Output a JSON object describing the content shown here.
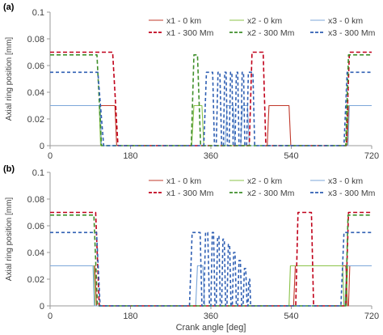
{
  "colors": {
    "x1": "#c0392b",
    "x1_300": "#c0001a",
    "x2": "#8bc34a",
    "x2_300": "#3f8f2b",
    "x3": "#7da7d9",
    "x3_300": "#2f5fb3",
    "axis": "#9a9a9a",
    "text": "#404040"
  },
  "xlabel": "Crank angle [deg]",
  "ylabel": "Axial ring position [mm]",
  "chart_data": [
    {
      "panel_label": "(a)",
      "type": "line",
      "xlim": [
        0,
        720
      ],
      "ylim": [
        0,
        0.1
      ],
      "xticks": [
        0,
        180,
        360,
        540,
        720
      ],
      "yticks": [
        0,
        0.02,
        0.04,
        0.06,
        0.08,
        0.1
      ],
      "yticklabels": [
        "0",
        "0.02",
        "0.04",
        "0.06",
        "0.08",
        "0.1"
      ],
      "grid": "none",
      "legend_position": "top-right",
      "series": [
        {
          "name": "x1 - 0 km",
          "key": "x1",
          "dashed": false,
          "points": [
            [
              0,
              0.03
            ],
            [
              145,
              0.03
            ],
            [
              149,
              0.0
            ],
            [
              486,
              0.0
            ],
            [
              490,
              0.03
            ],
            [
              535,
              0.03
            ],
            [
              539,
              0.0
            ],
            [
              665,
              0.0
            ],
            [
              669,
              0.03
            ],
            [
              720,
              0.03
            ]
          ]
        },
        {
          "name": "x2 - 0 km",
          "key": "x2",
          "dashed": false,
          "points": [
            [
              0,
              0.03
            ],
            [
              110,
              0.03
            ],
            [
              113,
              0.0
            ],
            [
              317,
              0.0
            ],
            [
              322,
              0.03
            ],
            [
              340,
              0.03
            ],
            [
              344,
              0.0
            ],
            [
              664,
              0.0
            ],
            [
              667,
              0.03
            ],
            [
              720,
              0.03
            ]
          ]
        },
        {
          "name": "x3 - 0 km",
          "key": "x3",
          "dashed": false,
          "points": [
            [
              0,
              0.03
            ],
            [
              112,
              0.03
            ],
            [
              115,
              0.0
            ],
            [
              392,
              0.0
            ],
            [
              396,
              0.03
            ],
            [
              410,
              0.03
            ],
            [
              414,
              0.0
            ],
            [
              427,
              0.0
            ],
            [
              431,
              0.03
            ],
            [
              442,
              0.03
            ],
            [
              446,
              0.0
            ],
            [
              667,
              0.0
            ],
            [
              670,
              0.03
            ],
            [
              720,
              0.03
            ]
          ]
        },
        {
          "name": "x1 - 300 Mm",
          "key": "x1_300",
          "dashed": true,
          "points": [
            [
              0,
              0.07
            ],
            [
              140,
              0.07
            ],
            [
              152,
              0.0
            ],
            [
              446,
              0.0
            ],
            [
              452,
              0.07
            ],
            [
              477,
              0.07
            ],
            [
              483,
              0.0
            ],
            [
              663,
              0.0
            ],
            [
              670,
              0.07
            ],
            [
              720,
              0.07
            ]
          ]
        },
        {
          "name": "x2 - 300 Mm",
          "key": "x2_300",
          "dashed": true,
          "points": [
            [
              0,
              0.068
            ],
            [
              105,
              0.068
            ],
            [
              115,
              0.0
            ],
            [
              316,
              0.0
            ],
            [
              322,
              0.068
            ],
            [
              330,
              0.068
            ],
            [
              337,
              0.0
            ],
            [
              662,
              0.0
            ],
            [
              668,
              0.068
            ],
            [
              720,
              0.068
            ]
          ]
        },
        {
          "name": "x3 - 300 Mm",
          "key": "x3_300",
          "dashed": true,
          "points": [
            [
              0,
              0.055
            ],
            [
              107,
              0.055
            ],
            [
              120,
              0.0
            ],
            [
              344,
              0.0
            ],
            [
              350,
              0.055
            ],
            [
              364,
              0.055
            ],
            [
              368,
              0.0
            ],
            [
              372,
              0.0
            ],
            [
              376,
              0.055
            ],
            [
              380,
              0.055
            ],
            [
              384,
              0.0
            ],
            [
              388,
              0.0
            ],
            [
              391,
              0.055
            ],
            [
              394,
              0.055
            ],
            [
              397,
              0.0
            ],
            [
              401,
              0.0
            ],
            [
              404,
              0.055
            ],
            [
              407,
              0.055
            ],
            [
              410,
              0.0
            ],
            [
              414,
              0.0
            ],
            [
              417,
              0.055
            ],
            [
              420,
              0.055
            ],
            [
              423,
              0.0
            ],
            [
              427,
              0.0
            ],
            [
              430,
              0.055
            ],
            [
              433,
              0.055
            ],
            [
              436,
              0.0
            ],
            [
              440,
              0.0
            ],
            [
              444,
              0.055
            ],
            [
              454,
              0.055
            ],
            [
              458,
              0.0
            ],
            [
              658,
              0.0
            ],
            [
              665,
              0.055
            ],
            [
              720,
              0.055
            ]
          ]
        }
      ]
    },
    {
      "panel_label": "(b)",
      "type": "line",
      "xlim": [
        0,
        720
      ],
      "ylim": [
        0,
        0.1
      ],
      "xticks": [
        0,
        180,
        360,
        540,
        720
      ],
      "yticks": [
        0,
        0.02,
        0.04,
        0.06,
        0.08,
        0.1
      ],
      "yticklabels": [
        "0",
        "0.02",
        "0.04",
        "0.06",
        "0.08",
        "0.1"
      ],
      "grid": "none",
      "legend_position": "top-right",
      "series": [
        {
          "name": "x1 - 0 km",
          "key": "x1",
          "dashed": false,
          "points": [
            [
              0,
              0.03
            ],
            [
              100,
              0.03
            ],
            [
              104,
              0.0
            ],
            [
              545,
              0.0
            ],
            [
              549,
              0.03
            ],
            [
              662,
              0.03
            ],
            [
              666,
              0.0
            ],
            [
              668,
              0.0
            ],
            [
              671,
              0.03
            ],
            [
              720,
              0.03
            ]
          ]
        },
        {
          "name": "x2 - 0 km",
          "key": "x2",
          "dashed": false,
          "points": [
            [
              0,
              0.03
            ],
            [
              98,
              0.03
            ],
            [
              101,
              0.0
            ],
            [
              535,
              0.0
            ],
            [
              538,
              0.03
            ],
            [
              655,
              0.03
            ],
            [
              658,
              0.0
            ],
            [
              663,
              0.0
            ],
            [
              666,
              0.03
            ],
            [
              720,
              0.03
            ]
          ]
        },
        {
          "name": "x3 - 0 km",
          "key": "x3",
          "dashed": false,
          "points": [
            [
              0,
              0.03
            ],
            [
              96,
              0.03
            ],
            [
              99,
              0.0
            ],
            [
              326,
              0.0
            ],
            [
              330,
              0.03
            ],
            [
              342,
              0.03
            ],
            [
              346,
              0.0
            ],
            [
              660,
              0.0
            ],
            [
              664,
              0.03
            ],
            [
              720,
              0.03
            ]
          ]
        },
        {
          "name": "x1 - 300 Mm",
          "key": "x1_300",
          "dashed": true,
          "points": [
            [
              0,
              0.07
            ],
            [
              102,
              0.07
            ],
            [
              110,
              0.0
            ],
            [
              550,
              0.0
            ],
            [
              555,
              0.07
            ],
            [
              585,
              0.07
            ],
            [
              590,
              0.0
            ],
            [
              662,
              0.0
            ],
            [
              668,
              0.07
            ],
            [
              720,
              0.07
            ]
          ]
        },
        {
          "name": "x2 - 300 Mm",
          "key": "x2_300",
          "dashed": true,
          "points": [
            [
              0,
              0.068
            ],
            [
              98,
              0.068
            ],
            [
              106,
              0.0
            ],
            [
              662,
              0.0
            ],
            [
              667,
              0.068
            ],
            [
              720,
              0.068
            ]
          ]
        },
        {
          "name": "x3 - 300 Mm",
          "key": "x3_300",
          "dashed": true,
          "points": [
            [
              0,
              0.055
            ],
            [
              104,
              0.055
            ],
            [
              112,
              0.0
            ],
            [
              312,
              0.0
            ],
            [
              318,
              0.055
            ],
            [
              336,
              0.055
            ],
            [
              340,
              0.0
            ],
            [
              344,
              0.0
            ],
            [
              348,
              0.055
            ],
            [
              353,
              0.055
            ],
            [
              357,
              0.0
            ],
            [
              360,
              0.0
            ],
            [
              363,
              0.055
            ],
            [
              366,
              0.055
            ],
            [
              369,
              0.0
            ],
            [
              372,
              0.0
            ],
            [
              375,
              0.052
            ],
            [
              378,
              0.052
            ],
            [
              381,
              0.0
            ],
            [
              384,
              0.0
            ],
            [
              387,
              0.05
            ],
            [
              390,
              0.05
            ],
            [
              393,
              0.0
            ],
            [
              396,
              0.0
            ],
            [
              399,
              0.046
            ],
            [
              402,
              0.046
            ],
            [
              405,
              0.0
            ],
            [
              408,
              0.0
            ],
            [
              411,
              0.04
            ],
            [
              414,
              0.04
            ],
            [
              417,
              0.0
            ],
            [
              420,
              0.0
            ],
            [
              423,
              0.034
            ],
            [
              426,
              0.034
            ],
            [
              429,
              0.0
            ],
            [
              432,
              0.0
            ],
            [
              435,
              0.028
            ],
            [
              438,
              0.028
            ],
            [
              441,
              0.0
            ],
            [
              443,
              0.0
            ],
            [
              445,
              0.02
            ],
            [
              447,
              0.02
            ],
            [
              449,
              0.0
            ],
            [
              651,
              0.0
            ],
            [
              658,
              0.055
            ],
            [
              720,
              0.055
            ]
          ]
        }
      ]
    }
  ]
}
